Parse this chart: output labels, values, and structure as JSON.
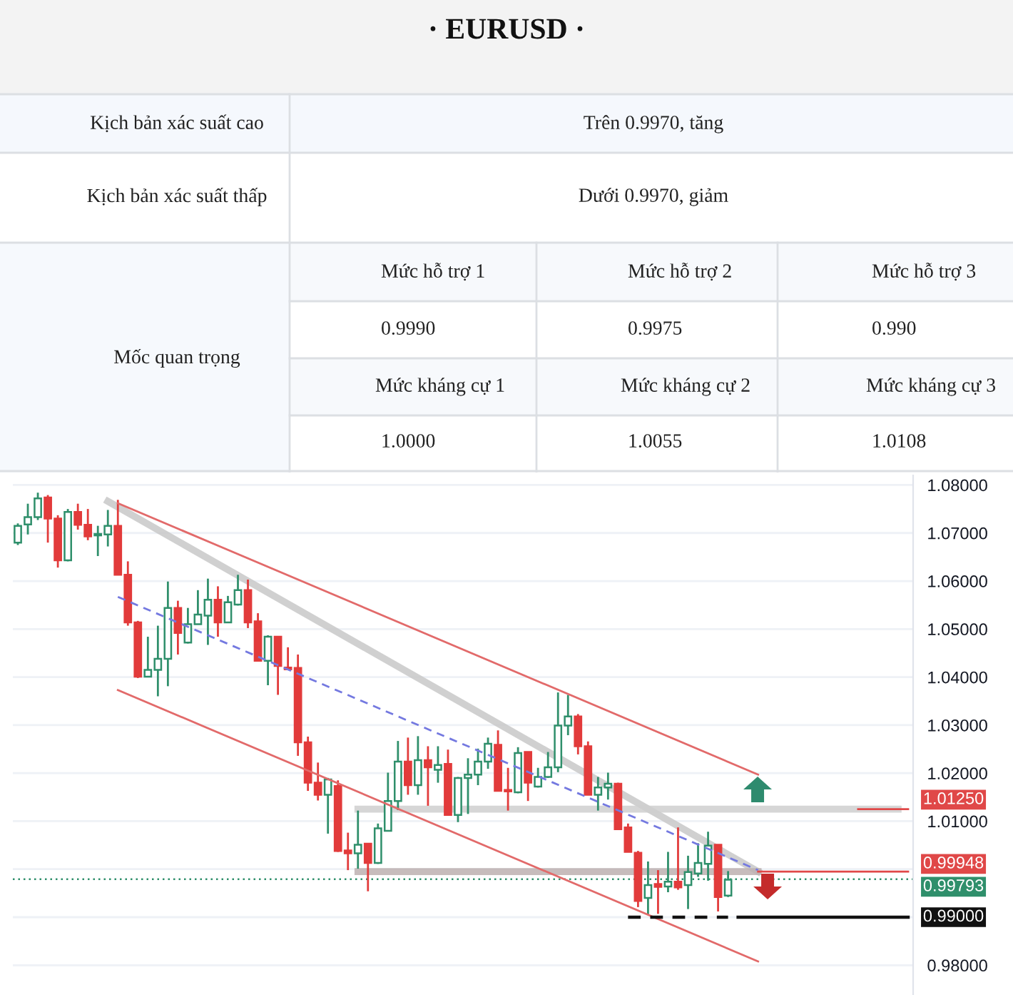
{
  "chart_data": [
    {
      "type": "other",
      "title": "· EURUSD ·",
      "annotations": [
        "Kịch bản xác suất cao",
        "Trên 0.9970, tăng",
        "Kịch bản xác suất thấp",
        "Dưới 0.9970, giảm",
        "Mốc quan trọng",
        "Mức hỗ trợ 1",
        "Mức hỗ trợ 2",
        "Mức hỗ trợ 3",
        "0.9990",
        "0.9975",
        "0.990",
        "Mức kháng cự 1",
        "Mức kháng cự 2",
        "Mức kháng cự 3",
        "1.0000",
        "1.0055",
        "1.0108"
      ]
    },
    {
      "type": "candlestick",
      "categories": [
        null,
        null,
        null,
        null,
        null,
        null,
        null,
        null,
        null,
        null,
        null,
        null,
        null,
        null,
        null,
        null,
        null,
        null,
        null,
        null,
        null,
        null,
        null,
        null,
        null,
        null,
        null,
        null,
        null,
        null,
        null,
        null,
        null,
        null,
        null,
        null,
        null,
        null,
        null,
        null,
        null,
        null,
        null,
        null,
        null,
        null,
        null,
        null,
        null,
        null,
        null,
        null,
        null,
        null,
        null,
        null,
        null,
        null,
        null,
        null,
        null,
        null,
        null,
        null,
        null,
        null,
        null,
        null,
        null,
        null,
        null,
        null,
        null,
        null,
        null,
        null,
        null,
        null,
        null,
        null,
        null,
        null,
        null,
        null,
        null,
        null,
        null,
        null,
        null,
        null
      ],
      "ohlc": [
        [
          1.068,
          1.072,
          1.0675,
          1.0715
        ],
        [
          1.0718,
          1.0761,
          1.0697,
          1.0733
        ],
        [
          1.0733,
          1.0784,
          1.0727,
          1.0772
        ],
        [
          1.0774,
          1.0779,
          1.068,
          1.073
        ],
        [
          1.073,
          1.0737,
          1.0628,
          1.0643
        ],
        [
          1.0643,
          1.075,
          1.0641,
          1.0744
        ],
        [
          1.0744,
          1.0761,
          1.0707,
          1.0717
        ],
        [
          1.0717,
          1.075,
          1.0685,
          1.0693
        ],
        [
          1.0695,
          1.0715,
          1.0652,
          1.0698
        ],
        [
          1.0697,
          1.0748,
          1.0672,
          1.0715
        ],
        [
          1.0715,
          1.0769,
          1.0613,
          1.0613
        ],
        [
          1.0613,
          1.0641,
          1.0507,
          1.0514
        ],
        [
          1.0514,
          1.0517,
          1.0398,
          1.0401
        ],
        [
          1.0401,
          1.0484,
          1.0401,
          1.0415
        ],
        [
          1.0415,
          1.0507,
          1.036,
          1.0438
        ],
        [
          1.0438,
          1.0599,
          1.0381,
          1.0544
        ],
        [
          1.0544,
          1.0559,
          1.0447,
          1.0492
        ],
        [
          1.0472,
          1.0544,
          1.047,
          1.051
        ],
        [
          1.051,
          1.0581,
          1.051,
          1.053
        ],
        [
          1.0528,
          1.0605,
          1.0467,
          1.0561
        ],
        [
          1.0561,
          1.0589,
          1.0484,
          1.0514
        ],
        [
          1.0514,
          1.0569,
          1.0514,
          1.0556
        ],
        [
          1.0551,
          1.0613,
          1.0549,
          1.0581
        ],
        [
          1.0581,
          1.0603,
          1.0502,
          1.0514
        ],
        [
          1.0516,
          1.0533,
          1.0434,
          1.0434
        ],
        [
          1.0434,
          1.0487,
          1.0383,
          1.0484
        ],
        [
          1.0484,
          1.0484,
          1.0363,
          1.0423
        ],
        [
          1.042,
          1.0462,
          1.0416,
          1.0416
        ],
        [
          1.0419,
          1.0447,
          1.0236,
          1.0264
        ],
        [
          1.0264,
          1.0276,
          1.0163,
          1.018
        ],
        [
          1.018,
          1.0222,
          1.0143,
          1.0155
        ],
        [
          1.0155,
          1.019,
          1.0074,
          1.0187
        ],
        [
          1.0173,
          1.0185,
          1.0036,
          1.0038
        ],
        [
          1.0039,
          1.0076,
          0.9998,
          1.0033
        ],
        [
          1.0033,
          1.0122,
          1.0001,
          1.0051
        ],
        [
          1.0053,
          1.0053,
          0.9954,
          1.0013
        ],
        [
          1.0013,
          1.0095,
          1.0011,
          1.0085
        ],
        [
          1.008,
          1.0201,
          1.0079,
          1.0142
        ],
        [
          1.0142,
          1.0267,
          1.0123,
          1.0224
        ],
        [
          1.0224,
          1.0274,
          1.0155,
          1.0175
        ],
        [
          1.0175,
          1.0277,
          1.0155,
          1.0227
        ],
        [
          1.0227,
          1.0256,
          1.0132,
          1.0212
        ],
        [
          1.0207,
          1.0256,
          1.018,
          1.0217
        ],
        [
          1.0219,
          1.0249,
          1.0113,
          1.0113
        ],
        [
          1.0113,
          1.0192,
          1.0098,
          1.019
        ],
        [
          1.019,
          1.0231,
          1.0115,
          1.0197
        ],
        [
          1.0197,
          1.0251,
          1.0175,
          1.0224
        ],
        [
          1.0224,
          1.0274,
          1.0209,
          1.0261
        ],
        [
          1.0259,
          1.0289,
          1.0163,
          1.0163
        ],
        [
          1.0165,
          1.0211,
          1.0122,
          1.0162
        ],
        [
          1.016,
          1.0254,
          1.0158,
          1.0242
        ],
        [
          1.0244,
          1.0244,
          1.0142,
          1.018
        ],
        [
          1.0172,
          1.0211,
          1.017,
          1.0192
        ],
        [
          1.0192,
          1.0244,
          1.019,
          1.0212
        ],
        [
          1.0212,
          1.0368,
          1.0202,
          1.0299
        ],
        [
          1.0299,
          1.0363,
          1.0279,
          1.0318
        ],
        [
          1.0318,
          1.0323,
          1.0239,
          1.0256
        ],
        [
          1.0256,
          1.0266,
          1.0155,
          1.0155
        ],
        [
          1.0155,
          1.0192,
          1.0122,
          1.017
        ],
        [
          1.017,
          1.0201,
          1.0145,
          1.0178
        ],
        [
          1.0178,
          1.018,
          1.0083,
          1.0083
        ],
        [
          1.0087,
          1.0095,
          1.0036,
          1.0036
        ],
        [
          1.0034,
          1.0038,
          0.9921,
          0.9934
        ],
        [
          0.994,
          1.0016,
          0.9905,
          0.9967
        ],
        [
          0.9969,
          0.9998,
          0.9907,
          0.9963
        ],
        [
          0.9964,
          1.0036,
          0.9952,
          0.9974
        ],
        [
          0.9974,
          1.0087,
          0.9957,
          0.9962
        ],
        [
          0.9967,
          1.0028,
          0.9917,
          0.9994
        ],
        [
          0.9991,
          1.0054,
          0.9984,
          1.0013
        ],
        [
          1.0011,
          1.0078,
          0.9976,
          1.0049
        ],
        [
          1.0051,
          1.0051,
          0.9912,
          0.9942
        ],
        [
          0.9945,
          0.9996,
          0.9942,
          0.9978
        ],
        null,
        null,
        null,
        null,
        null,
        null,
        null,
        null,
        null,
        null,
        null,
        null,
        null,
        null,
        null,
        null,
        null,
        null
      ],
      "colors": [
        "#2f8f6b",
        "#2f8f6b",
        "#2f8f6b",
        "#e23b3b",
        "#e23b3b",
        "#2f8f6b",
        "#e23b3b",
        "#e23b3b",
        "#2f8f6b",
        "#2f8f6b",
        "#e23b3b",
        "#e23b3b",
        "#e23b3b",
        "#2f8f6b",
        "#2f8f6b",
        "#2f8f6b",
        "#e23b3b",
        "#2f8f6b",
        "#2f8f6b",
        "#2f8f6b",
        "#e23b3b",
        "#2f8f6b",
        "#2f8f6b",
        "#e23b3b",
        "#e23b3b",
        "#2f8f6b",
        "#e23b3b",
        "#e23b3b",
        "#e23b3b",
        "#e23b3b",
        "#e23b3b",
        "#2f8f6b",
        "#e23b3b",
        "#e23b3b",
        "#2f8f6b",
        "#e23b3b",
        "#2f8f6b",
        "#2f8f6b",
        "#2f8f6b",
        "#e23b3b",
        "#2f8f6b",
        "#e23b3b",
        "#2f8f6b",
        "#e23b3b",
        "#2f8f6b",
        "#2f8f6b",
        "#2f8f6b",
        "#2f8f6b",
        "#e23b3b",
        "#e23b3b",
        "#2f8f6b",
        "#e23b3b",
        "#2f8f6b",
        "#2f8f6b",
        "#2f8f6b",
        "#2f8f6b",
        "#e23b3b",
        "#e23b3b",
        "#2f8f6b",
        "#2f8f6b",
        "#e23b3b",
        "#e23b3b",
        "#e23b3b",
        "#2f8f6b",
        "#e23b3b",
        "#2f8f6b",
        "#e23b3b",
        "#2f8f6b",
        "#2f8f6b",
        "#2f8f6b",
        "#e23b3b",
        "#2f8f6b",
        null,
        null,
        null,
        null,
        null,
        null,
        null,
        null,
        null,
        null,
        null,
        null,
        null,
        null,
        null,
        null,
        null,
        null
      ],
      "ylim": [
        0.9738,
        1.082
      ],
      "yticks": [
        {
          "value": 0.98,
          "label": "0.98000"
        },
        {
          "value": 0.99,
          "label": null
        },
        {
          "value": 1.0,
          "label": null
        },
        {
          "value": 1.01,
          "label": "1.01000"
        },
        {
          "value": 1.02,
          "label": "1.02000"
        },
        {
          "value": 1.03,
          "label": "1.03000"
        },
        {
          "value": 1.04,
          "label": "1.04000"
        },
        {
          "value": 1.05,
          "label": "1.05000"
        },
        {
          "value": 1.06,
          "label": "1.06000"
        },
        {
          "value": 1.07,
          "label": "1.07000"
        },
        {
          "value": 1.08,
          "label": "1.08000"
        }
      ],
      "grid": "y",
      "tick_labels": "y",
      "series": [
        {
          "type": "line",
          "color": "#e26a6a",
          "values": [
            null,
            null,
            null,
            null,
            null,
            null,
            null,
            null,
            null,
            null,
            1.0762,
            null,
            null,
            null,
            null,
            null,
            null,
            null,
            null,
            null,
            null,
            null,
            null,
            null,
            null,
            null,
            null,
            null,
            null,
            null,
            null,
            null,
            null,
            null,
            null,
            null,
            null,
            null,
            null,
            null,
            null,
            null,
            null,
            null,
            null,
            null,
            null,
            null,
            null,
            null,
            null,
            null,
            null,
            null,
            null,
            null,
            null,
            null,
            null,
            null,
            null,
            null,
            null,
            null,
            null,
            null,
            null,
            null,
            null,
            null,
            null,
            null,
            null,
            null,
            1.0197,
            null,
            null,
            null,
            null,
            null,
            null,
            null,
            null,
            null,
            null,
            null,
            null,
            null,
            null,
            null
          ]
        },
        {
          "type": "line",
          "color": "#e26a6a",
          "values": [
            null,
            null,
            null,
            null,
            null,
            null,
            null,
            null,
            null,
            null,
            1.0373,
            null,
            null,
            null,
            null,
            null,
            null,
            null,
            null,
            null,
            null,
            null,
            null,
            null,
            null,
            null,
            null,
            null,
            null,
            null,
            null,
            null,
            null,
            null,
            null,
            null,
            null,
            null,
            null,
            null,
            null,
            null,
            null,
            null,
            null,
            null,
            null,
            null,
            null,
            null,
            null,
            null,
            null,
            null,
            null,
            null,
            null,
            null,
            null,
            null,
            null,
            null,
            null,
            null,
            null,
            null,
            null,
            null,
            null,
            null,
            null,
            null,
            null,
            null,
            0.9808,
            null,
            null,
            null,
            null,
            null,
            null,
            null,
            null,
            null,
            null,
            null,
            null,
            null,
            null,
            null
          ]
        },
        {
          "type": "line",
          "color": "#7479e0",
          "line_style": "dashed",
          "values": [
            null,
            null,
            null,
            null,
            null,
            null,
            null,
            null,
            null,
            null,
            1.0567,
            null,
            null,
            null,
            null,
            null,
            null,
            null,
            null,
            null,
            null,
            null,
            null,
            null,
            null,
            null,
            null,
            null,
            null,
            null,
            null,
            null,
            null,
            null,
            null,
            null,
            null,
            null,
            null,
            null,
            null,
            null,
            null,
            null,
            null,
            null,
            null,
            null,
            null,
            null,
            null,
            null,
            null,
            null,
            null,
            null,
            null,
            null,
            null,
            null,
            null,
            null,
            null,
            null,
            null,
            null,
            null,
            null,
            null,
            null,
            null,
            null,
            null,
            null,
            0.9998,
            null,
            null,
            null,
            null,
            null,
            null,
            null,
            null,
            null,
            null,
            null,
            null,
            null,
            null,
            null
          ]
        },
        {
          "type": "line",
          "color": "#c8c8c8",
          "values": [
            null,
            null,
            null,
            null,
            null,
            null,
            null,
            null,
            null,
            1.0766,
            null,
            null,
            null,
            null,
            null,
            null,
            null,
            null,
            null,
            null,
            null,
            null,
            null,
            null,
            null,
            null,
            null,
            null,
            null,
            null,
            null,
            null,
            null,
            null,
            null,
            null,
            null,
            null,
            null,
            null,
            null,
            null,
            null,
            null,
            null,
            null,
            null,
            null,
            null,
            null,
            null,
            null,
            null,
            null,
            null,
            null,
            null,
            null,
            null,
            null,
            null,
            null,
            null,
            null,
            null,
            null,
            null,
            null,
            null,
            null,
            null,
            null,
            null,
            null,
            0.9995,
            null,
            null,
            null,
            null,
            null,
            null,
            null,
            null,
            null,
            null,
            null,
            null,
            null,
            null,
            null
          ]
        },
        {
          "type": "line",
          "color": "#cfcfcf",
          "values": [
            null,
            null,
            null,
            null,
            null,
            null,
            null,
            null,
            null,
            null,
            null,
            null,
            null,
            null,
            null,
            null,
            null,
            null,
            null,
            null,
            null,
            null,
            null,
            null,
            null,
            null,
            null,
            null,
            null,
            null,
            null,
            null,
            null,
            null,
            1.0125,
            null,
            null,
            null,
            null,
            null,
            null,
            null,
            null,
            null,
            null,
            null,
            null,
            null,
            null,
            null,
            null,
            null,
            null,
            null,
            null,
            null,
            null,
            null,
            null,
            null,
            null,
            null,
            null,
            null,
            null,
            null,
            null,
            null,
            null,
            null,
            null,
            null,
            null,
            null,
            null,
            null,
            null,
            null,
            null,
            null,
            null,
            null,
            null,
            null,
            null,
            null,
            null,
            null,
            1.0125,
            null
          ]
        },
        {
          "type": "line",
          "color": "#e04848",
          "values": [
            null,
            null,
            null,
            null,
            null,
            null,
            null,
            null,
            null,
            null,
            null,
            null,
            null,
            null,
            null,
            null,
            null,
            null,
            null,
            null,
            null,
            null,
            null,
            null,
            null,
            null,
            null,
            null,
            null,
            null,
            null,
            null,
            null,
            null,
            null,
            null,
            null,
            null,
            null,
            null,
            null,
            null,
            null,
            null,
            null,
            null,
            null,
            null,
            null,
            null,
            null,
            null,
            null,
            null,
            null,
            null,
            null,
            null,
            null,
            null,
            null,
            null,
            null,
            null,
            null,
            null,
            null,
            null,
            null,
            null,
            null,
            null,
            null,
            null,
            null,
            null,
            null,
            null,
            null,
            null,
            null,
            null,
            null,
            null,
            1.0125,
            null,
            null,
            null,
            null,
            1.0125
          ],
          "value_labels": [
            null,
            null,
            null,
            null,
            null,
            null,
            null,
            null,
            null,
            null,
            null,
            null,
            null,
            null,
            null,
            null,
            null,
            null,
            null,
            null,
            null,
            null,
            null,
            null,
            null,
            null,
            null,
            null,
            null,
            null,
            null,
            null,
            null,
            null,
            null,
            null,
            null,
            null,
            null,
            null,
            null,
            null,
            null,
            null,
            null,
            null,
            null,
            null,
            null,
            null,
            null,
            null,
            null,
            null,
            null,
            null,
            null,
            null,
            null,
            null,
            null,
            null,
            null,
            null,
            null,
            null,
            null,
            null,
            null,
            null,
            null,
            null,
            null,
            null,
            null,
            null,
            null,
            null,
            null,
            null,
            null,
            null,
            null,
            null,
            null,
            null,
            null,
            null,
            null,
            "1.01250"
          ]
        },
        {
          "type": "line",
          "color": "#bdb0b0",
          "values": [
            null,
            null,
            null,
            null,
            null,
            null,
            null,
            null,
            null,
            null,
            null,
            null,
            null,
            null,
            null,
            null,
            null,
            null,
            null,
            null,
            null,
            null,
            null,
            null,
            null,
            null,
            null,
            null,
            null,
            null,
            null,
            null,
            null,
            null,
            0.9995,
            null,
            null,
            null,
            null,
            null,
            null,
            null,
            null,
            null,
            null,
            null,
            null,
            null,
            null,
            null,
            null,
            null,
            null,
            null,
            null,
            null,
            null,
            null,
            null,
            null,
            null,
            null,
            null,
            null,
            null,
            null,
            null,
            null,
            null,
            null,
            null,
            null,
            null,
            null,
            0.9995,
            null,
            null,
            null,
            null,
            null,
            null,
            null,
            null,
            null,
            null,
            null,
            null,
            null,
            null,
            null
          ]
        },
        {
          "type": "line",
          "color": "#e04848",
          "values": [
            null,
            null,
            null,
            null,
            null,
            null,
            null,
            null,
            null,
            null,
            null,
            null,
            null,
            null,
            null,
            null,
            null,
            null,
            null,
            null,
            null,
            null,
            null,
            null,
            null,
            null,
            null,
            null,
            null,
            null,
            null,
            null,
            null,
            null,
            null,
            null,
            null,
            null,
            null,
            null,
            null,
            null,
            null,
            null,
            null,
            null,
            null,
            null,
            null,
            null,
            null,
            null,
            null,
            null,
            null,
            null,
            null,
            null,
            null,
            null,
            null,
            null,
            null,
            null,
            null,
            null,
            null,
            null,
            null,
            null,
            null,
            null,
            null,
            null,
            0.99948,
            null,
            null,
            null,
            null,
            null,
            null,
            null,
            null,
            null,
            null,
            null,
            null,
            null,
            null,
            0.99948
          ],
          "value_labels": [
            null,
            null,
            null,
            null,
            null,
            null,
            null,
            null,
            null,
            null,
            null,
            null,
            null,
            null,
            null,
            null,
            null,
            null,
            null,
            null,
            null,
            null,
            null,
            null,
            null,
            null,
            null,
            null,
            null,
            null,
            null,
            null,
            null,
            null,
            null,
            null,
            null,
            null,
            null,
            null,
            null,
            null,
            null,
            null,
            null,
            null,
            null,
            null,
            null,
            null,
            null,
            null,
            null,
            null,
            null,
            null,
            null,
            null,
            null,
            null,
            null,
            null,
            null,
            null,
            null,
            null,
            null,
            null,
            null,
            null,
            null,
            null,
            null,
            null,
            null,
            null,
            null,
            null,
            null,
            null,
            null,
            null,
            null,
            null,
            null,
            null,
            null,
            null,
            null,
            "0.99948"
          ]
        },
        {
          "type": "line",
          "color": "#111111",
          "line_style": "dashed",
          "values": [
            null,
            null,
            null,
            null,
            null,
            null,
            null,
            null,
            null,
            null,
            null,
            null,
            null,
            null,
            null,
            null,
            null,
            null,
            null,
            null,
            null,
            null,
            null,
            null,
            null,
            null,
            null,
            null,
            null,
            null,
            null,
            null,
            null,
            null,
            null,
            null,
            null,
            null,
            null,
            null,
            null,
            null,
            null,
            null,
            null,
            null,
            null,
            null,
            null,
            null,
            null,
            null,
            null,
            null,
            null,
            null,
            null,
            null,
            null,
            null,
            null,
            0.99,
            null,
            null,
            null,
            null,
            null,
            null,
            null,
            null,
            null,
            0.99,
            null,
            null,
            null,
            null,
            null,
            null,
            null,
            null,
            null,
            null,
            null,
            null,
            null,
            null,
            null,
            null,
            null,
            null
          ]
        },
        {
          "type": "line",
          "color": "#111111",
          "values": [
            null,
            null,
            null,
            null,
            null,
            null,
            null,
            null,
            null,
            null,
            null,
            null,
            null,
            null,
            null,
            null,
            null,
            null,
            null,
            null,
            null,
            null,
            null,
            null,
            null,
            null,
            null,
            null,
            null,
            null,
            null,
            null,
            null,
            null,
            null,
            null,
            null,
            null,
            null,
            null,
            null,
            null,
            null,
            null,
            null,
            null,
            null,
            null,
            null,
            null,
            null,
            null,
            null,
            null,
            null,
            null,
            null,
            null,
            null,
            null,
            null,
            null,
            null,
            null,
            null,
            null,
            null,
            null,
            null,
            null,
            null,
            null,
            0.99,
            null,
            null,
            null,
            null,
            null,
            null,
            null,
            null,
            null,
            null,
            null,
            null,
            null,
            null,
            null,
            null,
            0.99
          ],
          "value_labels": [
            null,
            null,
            null,
            null,
            null,
            null,
            null,
            null,
            null,
            null,
            null,
            null,
            null,
            null,
            null,
            null,
            null,
            null,
            null,
            null,
            null,
            null,
            null,
            null,
            null,
            null,
            null,
            null,
            null,
            null,
            null,
            null,
            null,
            null,
            null,
            null,
            null,
            null,
            null,
            null,
            null,
            null,
            null,
            null,
            null,
            null,
            null,
            null,
            null,
            null,
            null,
            null,
            null,
            null,
            null,
            null,
            null,
            null,
            null,
            null,
            null,
            null,
            null,
            null,
            null,
            null,
            null,
            null,
            null,
            null,
            null,
            null,
            null,
            null,
            null,
            null,
            null,
            null,
            null,
            null,
            null,
            null,
            null,
            null,
            null,
            null,
            null,
            null,
            null,
            "0.99000"
          ]
        }
      ],
      "ref_lines": [
        {
          "axis": "y",
          "value": 0.99793,
          "label": "0.99793",
          "color": "#2f8f6b",
          "line_style": "dotted"
        }
      ]
    }
  ]
}
